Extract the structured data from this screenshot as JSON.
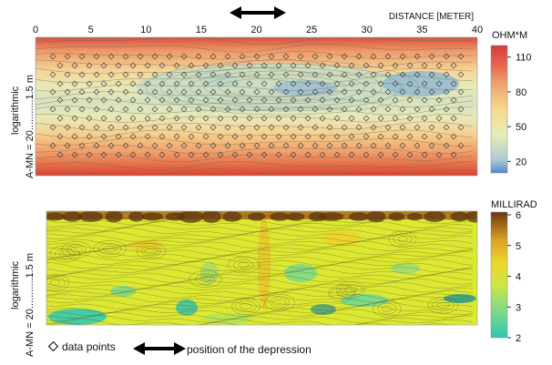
{
  "chart_data": [
    {
      "type": "heatmap",
      "title": "",
      "top_axis_label": "DISTANCE [METER]",
      "x_ticks": [
        0,
        5,
        10,
        15,
        20,
        25,
        30,
        35,
        40
      ],
      "xlim": [
        0,
        40
      ],
      "y_axis_label": "A-MN = 20...........1.5 m",
      "y_scale_label": "logarithmic",
      "colorbar_title": "OHM*M",
      "colorbar_ticks": [
        20,
        50,
        80,
        110
      ],
      "colormap": [
        "#4f86d6",
        "#6fa3c4",
        "#b9d3c4",
        "#eeeaa8",
        "#f6d98e",
        "#f3b27a",
        "#ed8561",
        "#e25a48",
        "#d93a36"
      ],
      "grid": false,
      "data_points_shown": true,
      "depression_range_m": [
        17,
        23
      ]
    },
    {
      "type": "heatmap",
      "title": "",
      "x_ticks": [
        0,
        5,
        10,
        15,
        20,
        25,
        30,
        35,
        40
      ],
      "xlim": [
        0,
        40
      ],
      "y_axis_label": "A-MN = 20...........1.5 m",
      "y_scale_label": "logarithmic",
      "colorbar_title": "MILLIRAD",
      "colorbar_ticks": [
        2,
        3,
        4,
        5,
        6
      ],
      "colormap": [
        "#2fc7b4",
        "#6fd89a",
        "#b6e05a",
        "#eaea34",
        "#ecd22a",
        "#d9a022",
        "#b4661a",
        "#7a3a12"
      ],
      "grid": false
    }
  ],
  "legend": {
    "data_points_label": "data points",
    "depression_label": "position of the depression"
  }
}
